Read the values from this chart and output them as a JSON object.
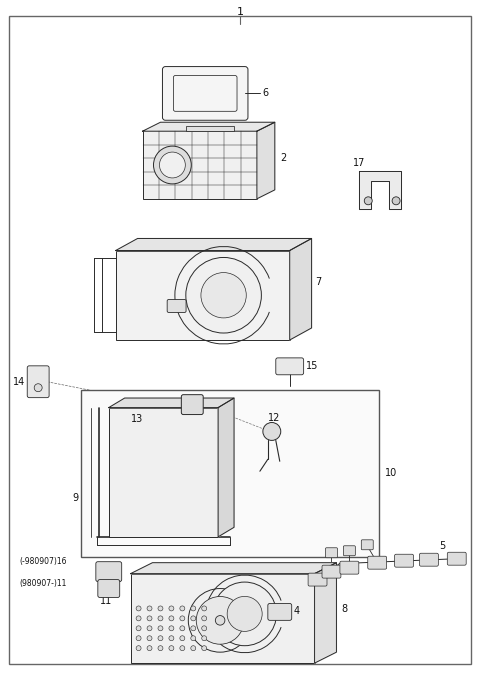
{
  "bg_color": "#ffffff",
  "line_color": "#2a2a2a",
  "label_color": "#111111",
  "fig_width": 4.8,
  "fig_height": 6.74,
  "dpi": 100
}
